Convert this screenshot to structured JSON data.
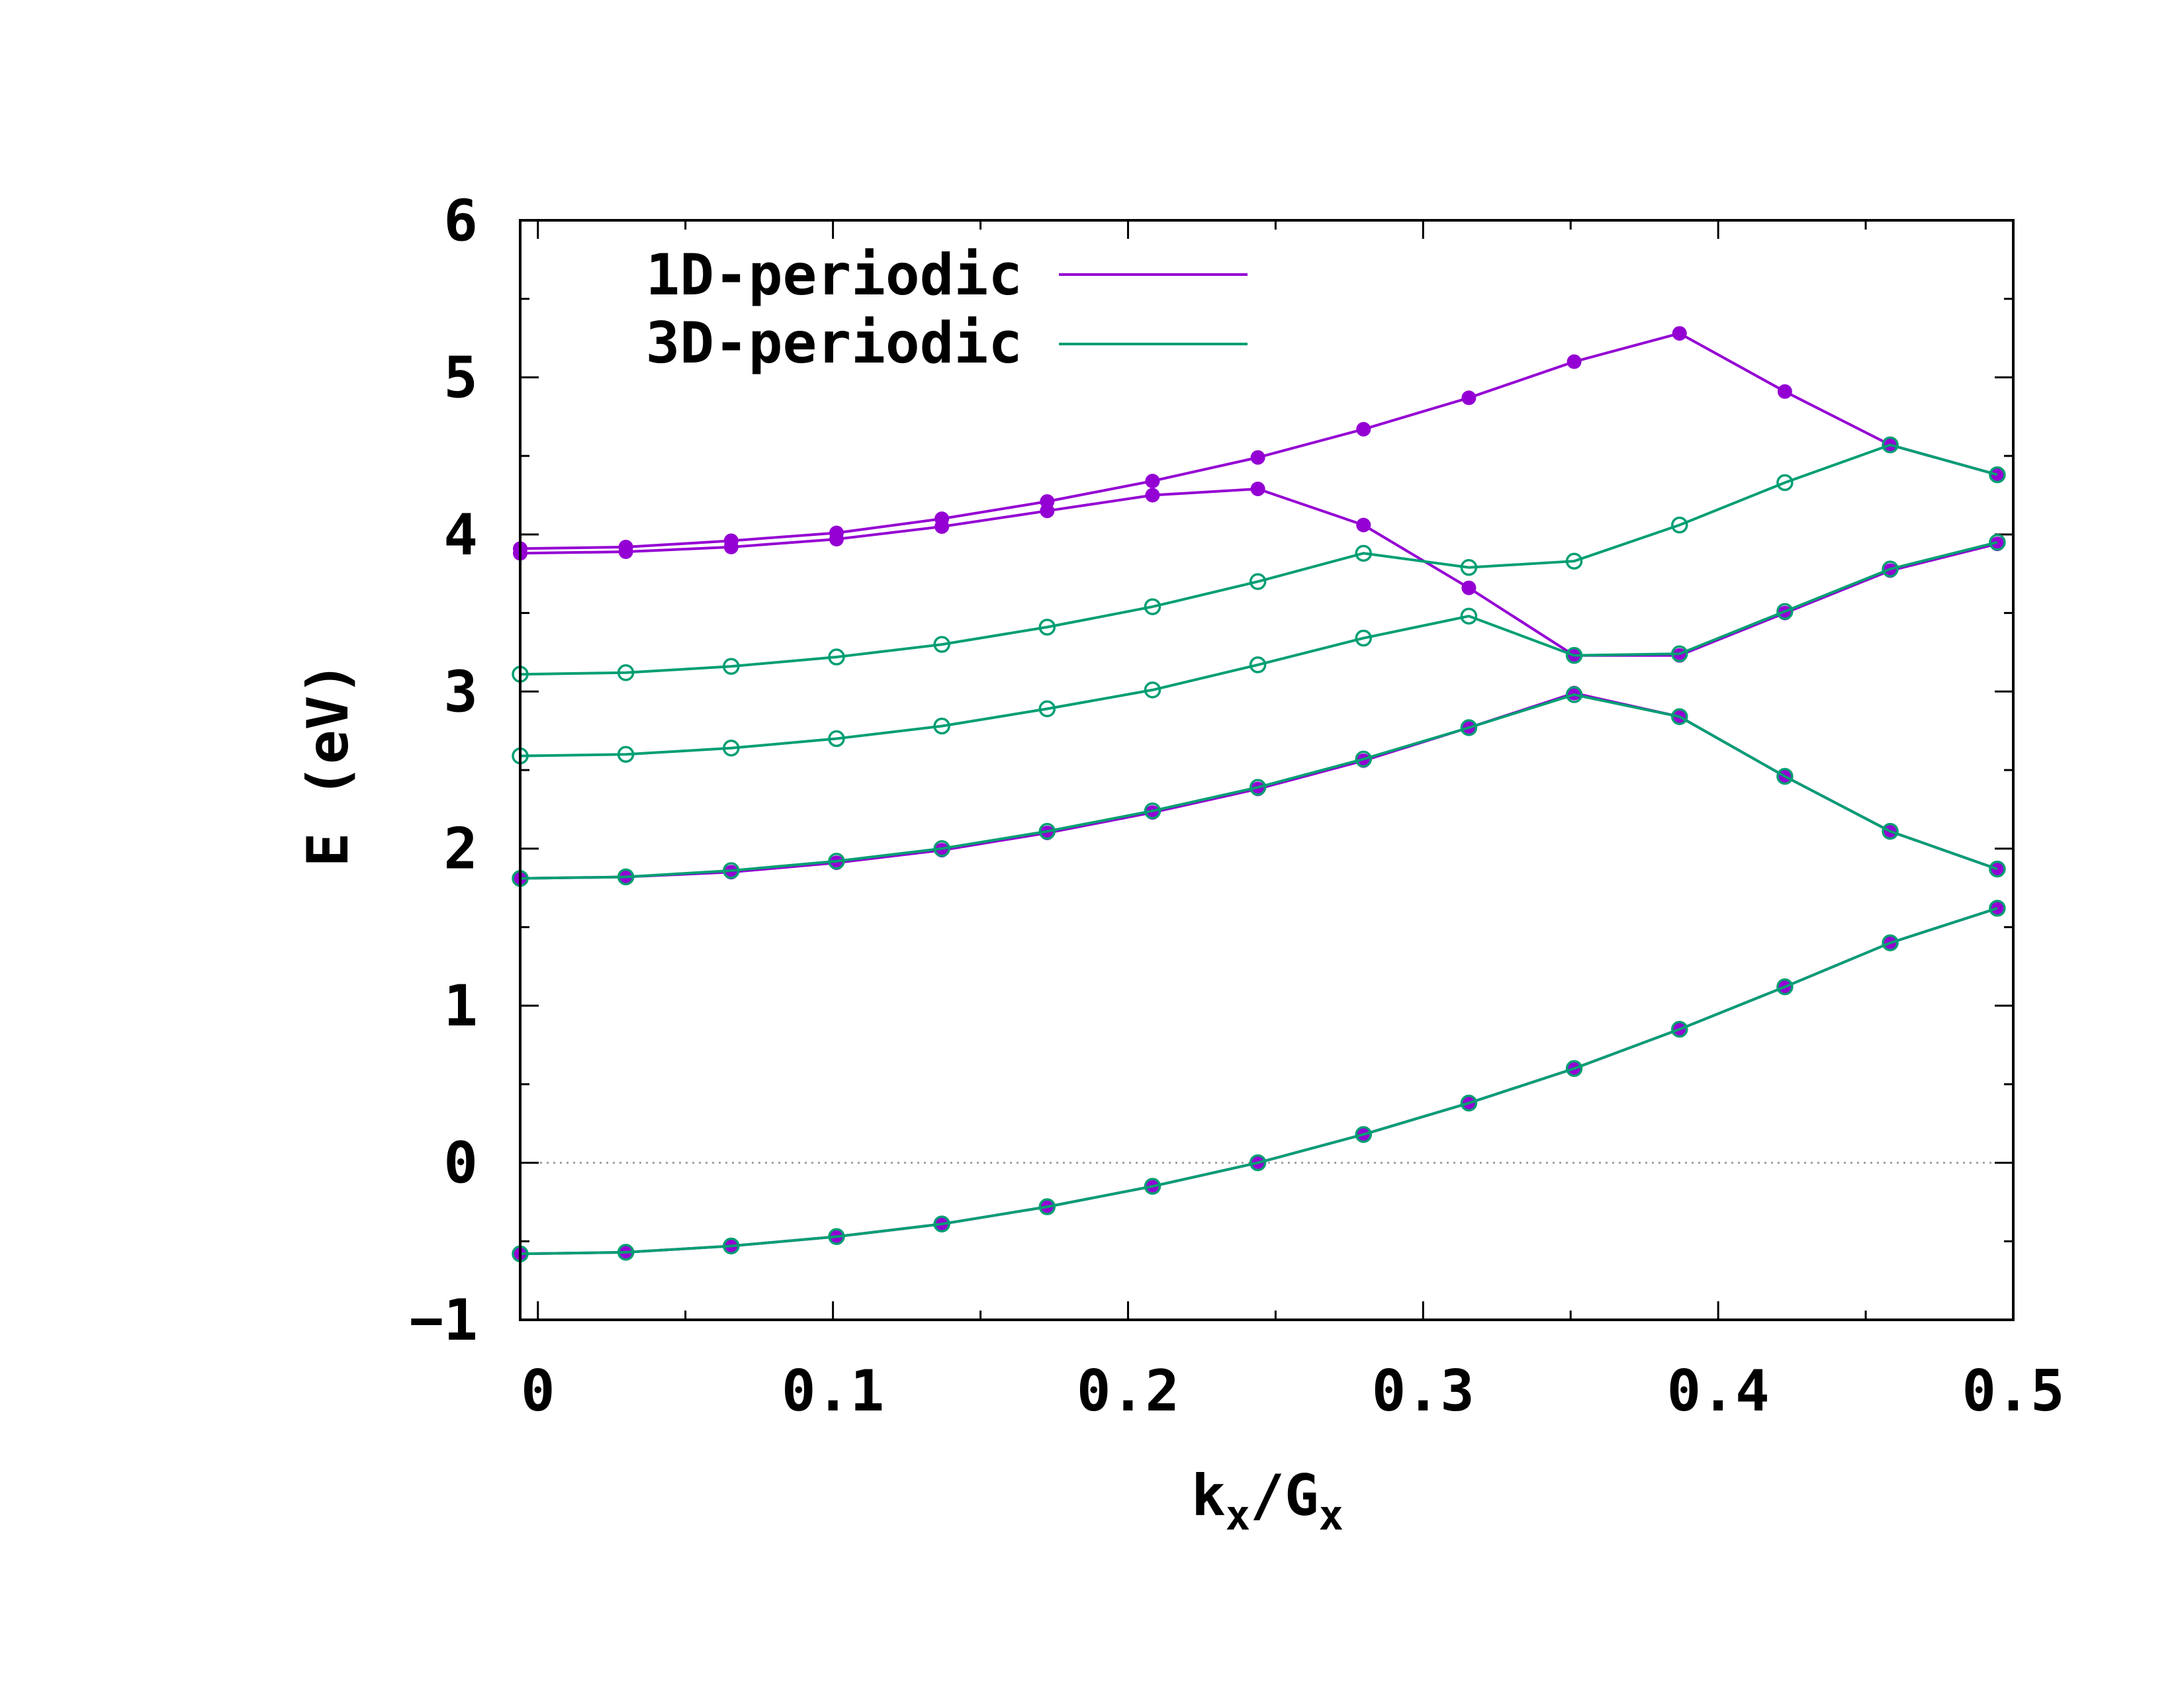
{
  "chart_data": {
    "type": "line",
    "title": "",
    "xlabel": {
      "base": "k",
      "sub1": "x",
      "mid": "/G",
      "sub2": "x"
    },
    "ylabel": "E (eV)",
    "xlim": [
      -0.006,
      0.5
    ],
    "ylim": [
      -1,
      6
    ],
    "xticks": [
      0,
      0.1,
      0.2,
      0.3,
      0.4,
      0.5
    ],
    "xtick_labels": [
      "0",
      "0.1",
      "0.2",
      "0.3",
      "0.4",
      "0.5"
    ],
    "yticks": [
      -1,
      0,
      1,
      2,
      3,
      4,
      5,
      6
    ],
    "ytick_labels": [
      "−1",
      "0",
      "1",
      "2",
      "3",
      "4",
      "5",
      "6"
    ],
    "zero_line": 0,
    "legend": {
      "position": "top-left",
      "entries": [
        "1D-periodic",
        "3D-periodic"
      ]
    },
    "colors": {
      "1D-periodic": "#9400d3",
      "3D-periodic": "#009e73",
      "axis": "#000000",
      "zero_line": "#a0a0a0"
    },
    "x": [
      -0.006,
      0.0298,
      0.0655,
      0.1012,
      0.1369,
      0.1726,
      0.2083,
      0.244,
      0.2798,
      0.3155,
      0.3512,
      0.3869,
      0.4226,
      0.4583,
      0.4946
    ],
    "series": [
      {
        "name": "1D-periodic",
        "marker": "filled",
        "values": [
          3.91,
          3.92,
          3.96,
          4.01,
          4.1,
          4.21,
          4.34,
          4.49,
          4.67,
          4.87,
          5.1,
          5.28,
          4.91,
          4.57,
          4.38
        ]
      },
      {
        "name": "1D-periodic",
        "marker": "filled",
        "values": [
          3.88,
          3.89,
          3.92,
          3.97,
          4.05,
          4.15,
          4.25,
          4.29,
          4.06,
          3.66,
          3.23,
          3.23,
          3.5,
          3.77,
          3.94
        ]
      },
      {
        "name": "1D-periodic",
        "marker": "filled",
        "values": [
          1.81,
          1.82,
          1.85,
          1.91,
          1.99,
          2.1,
          2.23,
          2.38,
          2.56,
          2.77,
          2.99,
          2.84,
          2.46,
          2.11,
          1.87
        ]
      },
      {
        "name": "1D-periodic",
        "marker": "filled",
        "values": [
          -0.58,
          -0.57,
          -0.53,
          -0.47,
          -0.39,
          -0.28,
          -0.15,
          0.0,
          0.18,
          0.38,
          0.6,
          0.85,
          1.12,
          1.4,
          1.62
        ]
      },
      {
        "name": "3D-periodic",
        "marker": "open",
        "values": [
          3.11,
          3.12,
          3.16,
          3.22,
          3.3,
          3.41,
          3.54,
          3.7,
          3.88,
          3.79,
          3.83,
          4.06,
          4.33,
          4.57,
          4.38
        ]
      },
      {
        "name": "3D-periodic",
        "marker": "open",
        "values": [
          2.59,
          2.6,
          2.64,
          2.7,
          2.78,
          2.89,
          3.01,
          3.17,
          3.34,
          3.48,
          3.23,
          3.24,
          3.51,
          3.78,
          3.95
        ]
      },
      {
        "name": "3D-periodic",
        "marker": "open",
        "values": [
          1.81,
          1.82,
          1.86,
          1.92,
          2.0,
          2.11,
          2.24,
          2.39,
          2.57,
          2.77,
          2.98,
          2.84,
          2.46,
          2.11,
          1.87
        ]
      },
      {
        "name": "3D-periodic",
        "marker": "open",
        "values": [
          -0.58,
          -0.57,
          -0.53,
          -0.47,
          -0.39,
          -0.28,
          -0.15,
          0.0,
          0.18,
          0.38,
          0.6,
          0.85,
          1.12,
          1.4,
          1.62
        ]
      }
    ]
  }
}
